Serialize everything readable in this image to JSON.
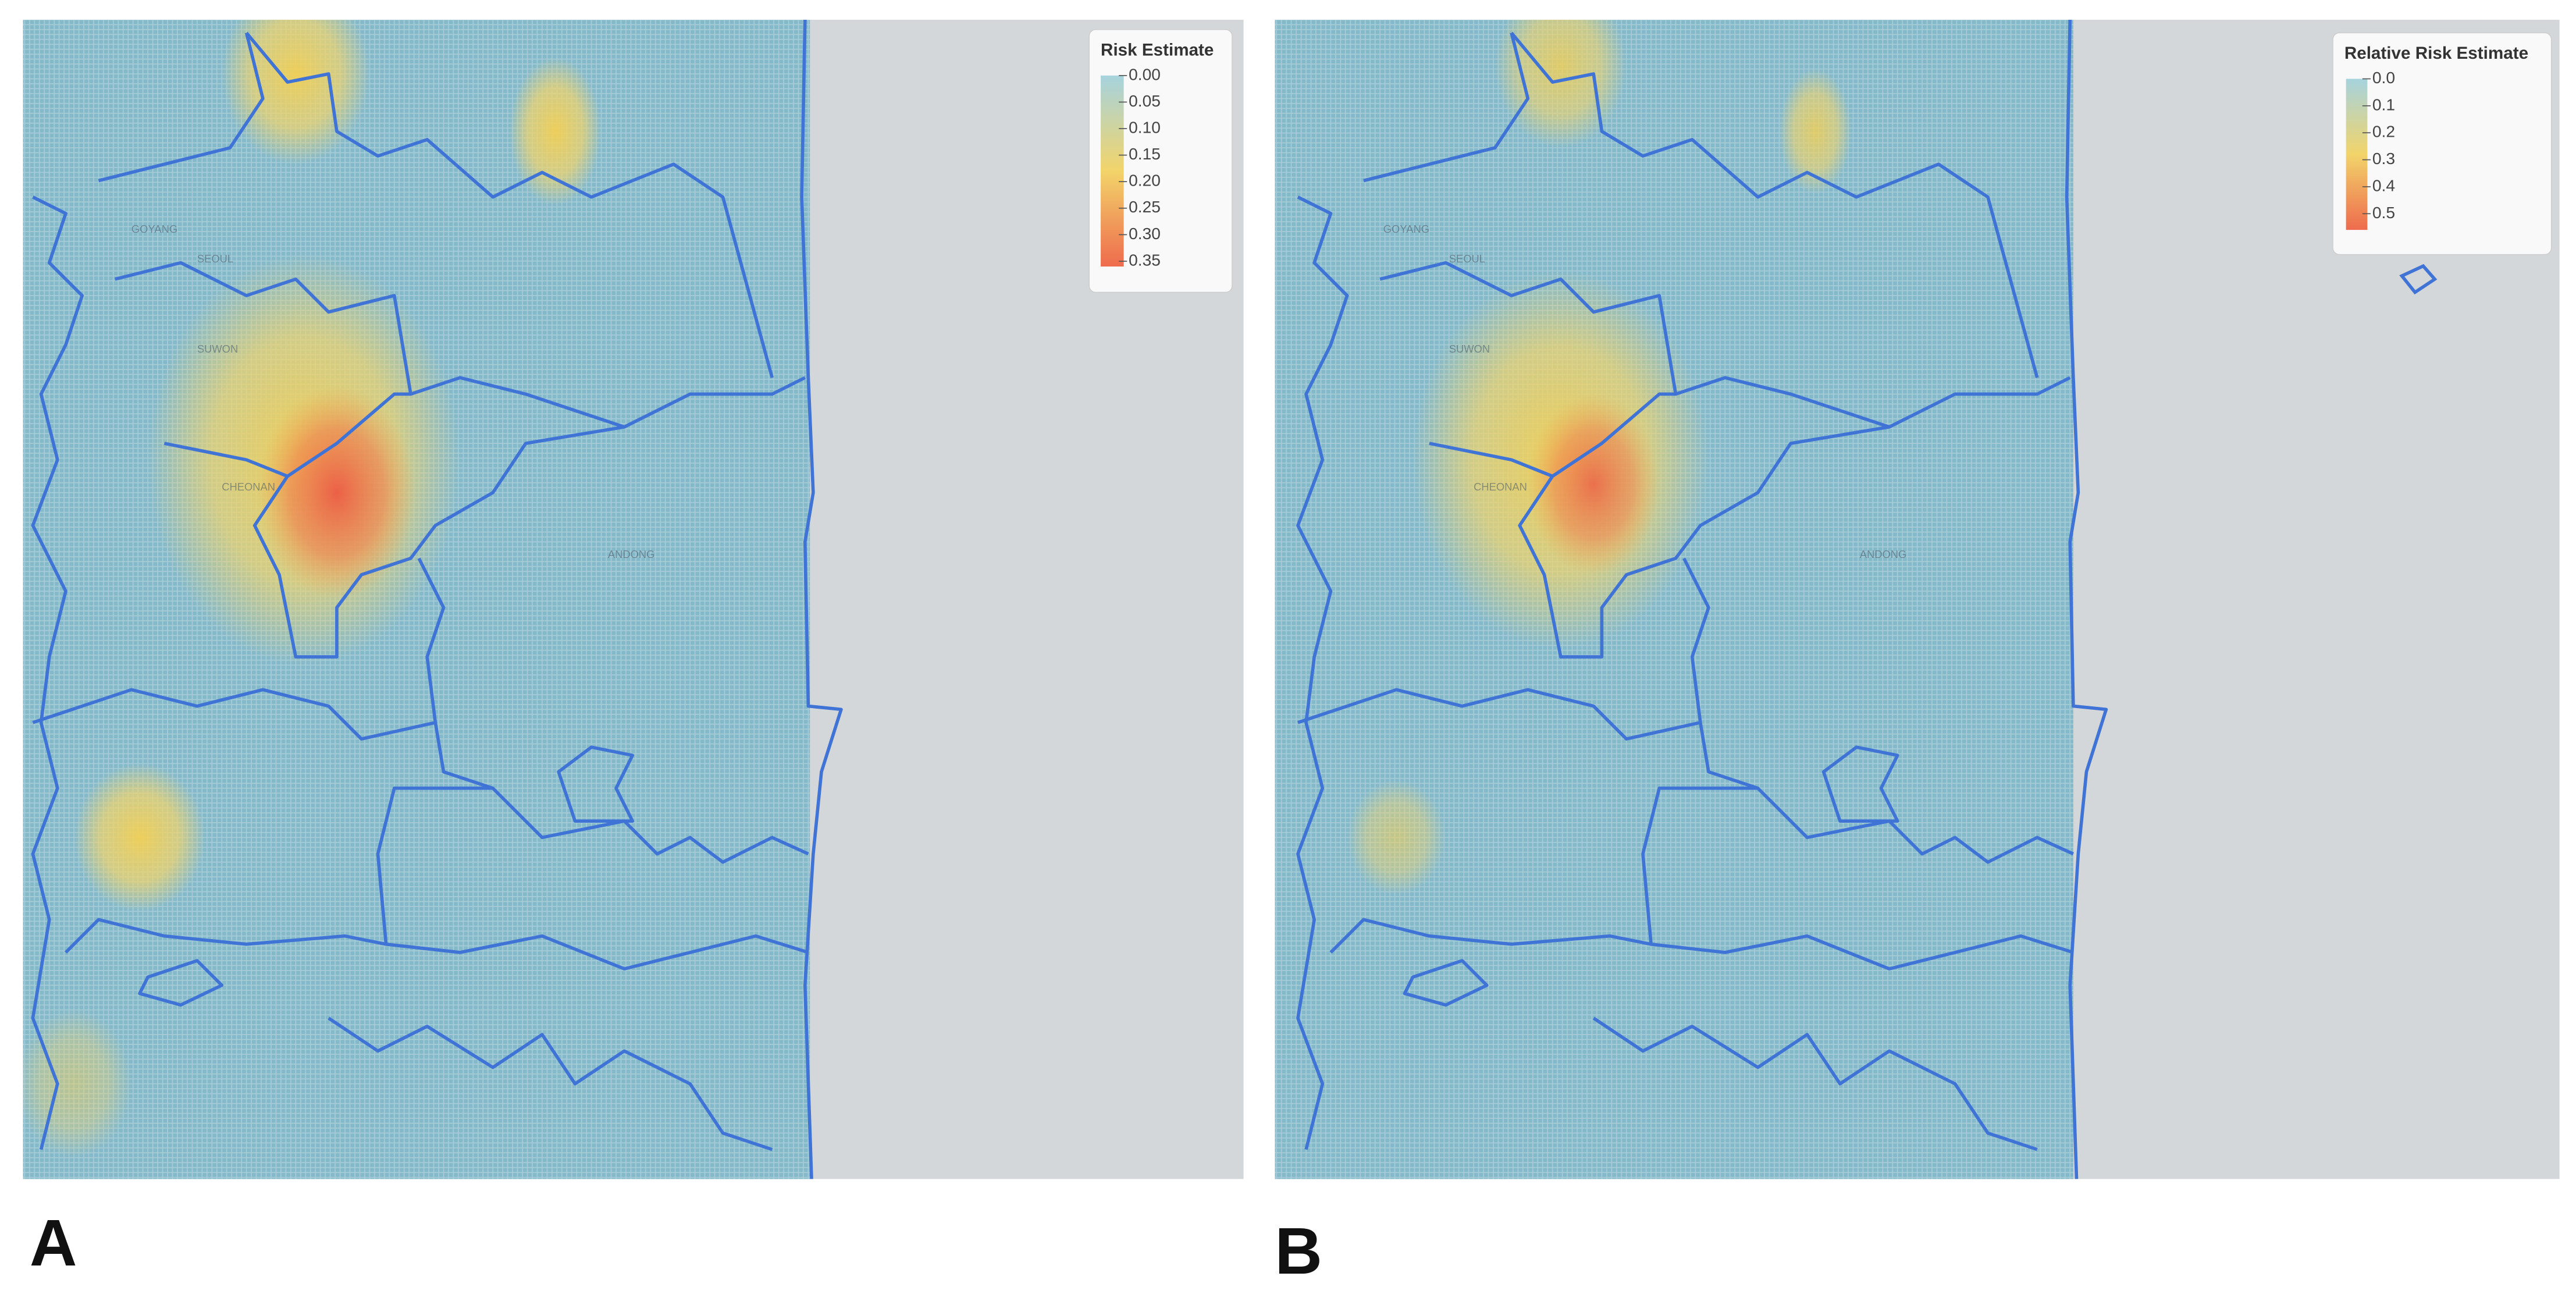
{
  "maps": [
    {
      "panel_label": "A",
      "place_labels": [
        "GOYANG",
        "SEOUL",
        "SUWON",
        "CHEONAN",
        "ANDONG"
      ],
      "legend": {
        "title": "Risk Estimate",
        "range": [
          0,
          0.36
        ],
        "colors": [
          "#a6d3de",
          "#f2d46a",
          "#ee6b4d"
        ],
        "ticks": [
          {
            "value": 0,
            "label": "0.00"
          },
          0.05,
          {
            "value": 0.1,
            "label": "0.10"
          },
          0.15,
          {
            "value": 0.2,
            "label": "0.20"
          },
          0.25,
          {
            "value": 0.3,
            "label": "0.30"
          },
          0.35
        ]
      }
    },
    {
      "panel_label": "B",
      "place_labels": [
        "GOYANG",
        "SEOUL",
        "SUWON",
        "CHEONAN",
        "ANDONG"
      ],
      "legend": {
        "title": "Relative Risk Estimate",
        "range": [
          0,
          0.56
        ],
        "colors": [
          "#a6d3de",
          "#f2d46a",
          "#ee6b4d"
        ],
        "ticks": [
          {
            "value": 0,
            "label": "0.0"
          },
          0.1,
          0.2,
          0.3,
          0.4,
          0.5
        ]
      }
    }
  ]
}
